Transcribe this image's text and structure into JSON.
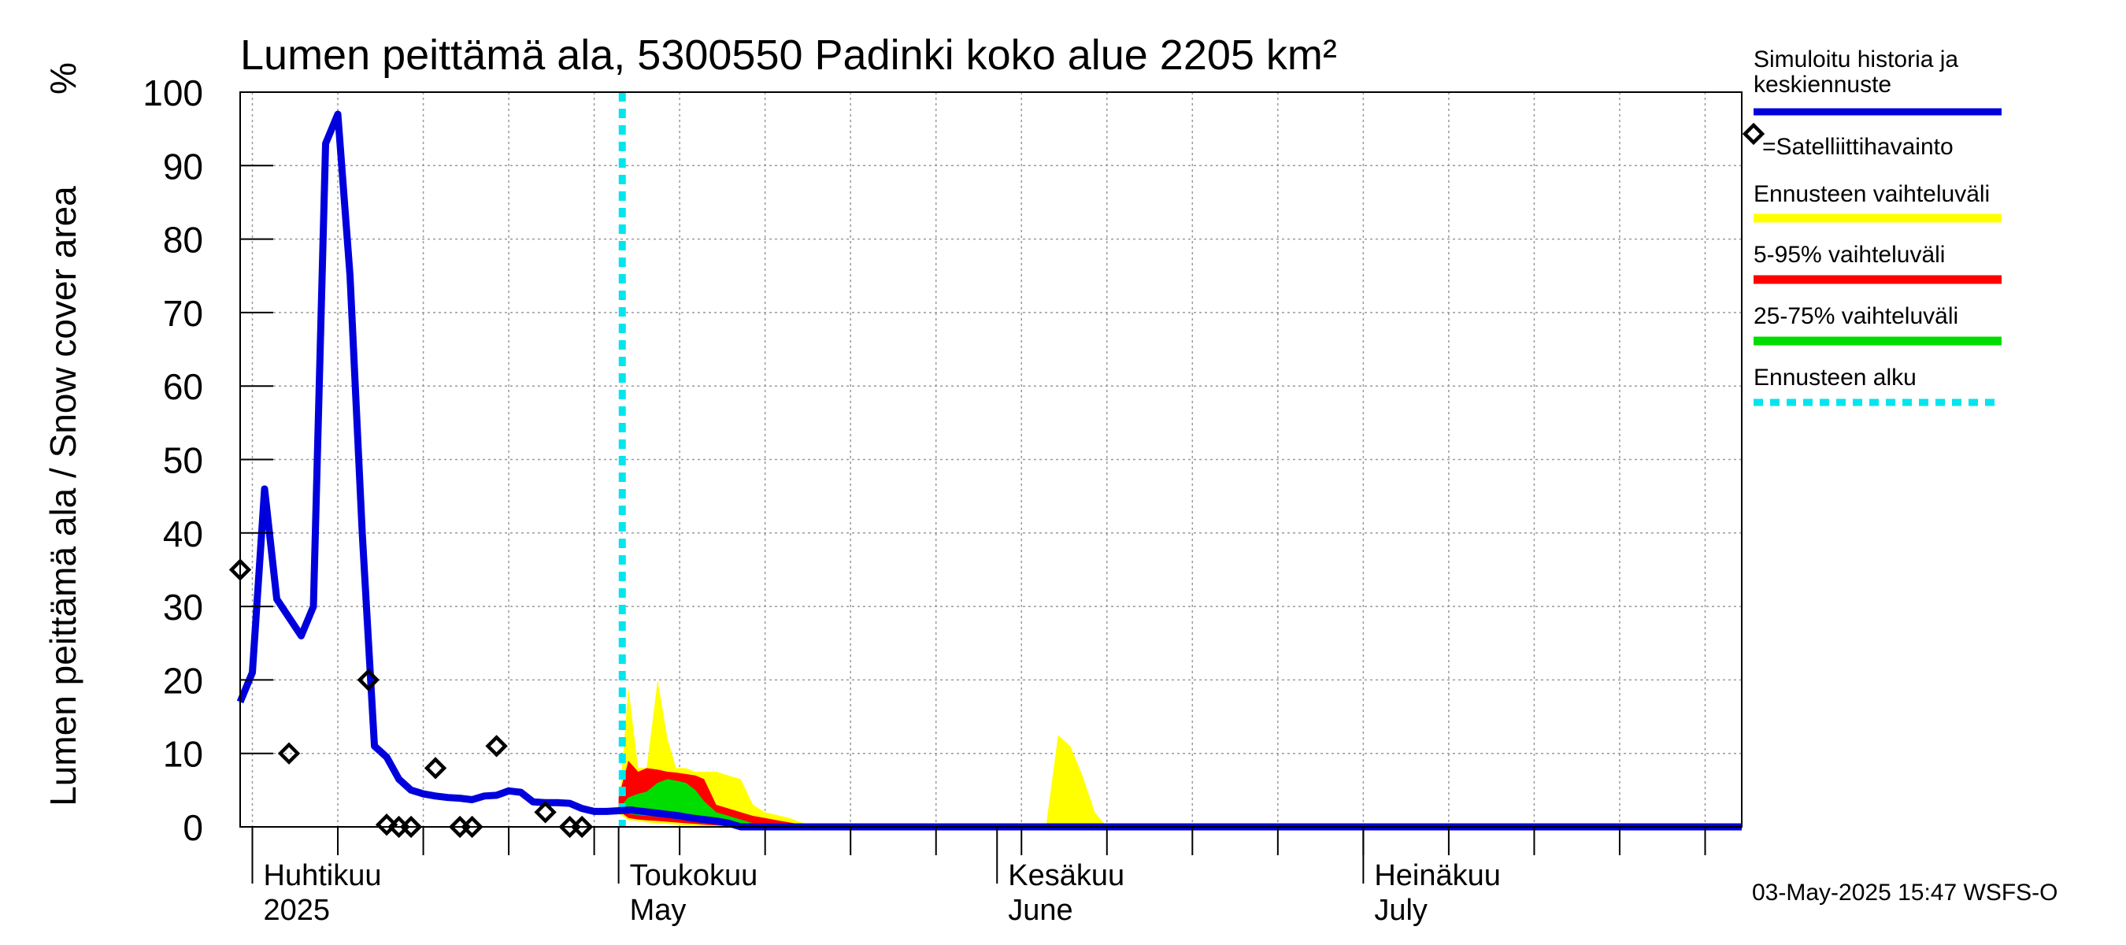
{
  "chart_data": {
    "type": "area",
    "title": "Lumen peittämä ala, 5300550 Padinki koko alue 2205 km²",
    "ylabel": "Lumen peittämä ala / Snow cover area",
    "yunit": "%",
    "ylim": [
      0,
      100
    ],
    "yticks": [
      0,
      10,
      20,
      30,
      40,
      50,
      60,
      70,
      80,
      90,
      100
    ],
    "x_unit": "day of year 2025",
    "xlim": [
      90.0,
      213.0
    ],
    "months": [
      {
        "label_fi": "Huhtikuu",
        "label_en": "2025",
        "start_day": 91
      },
      {
        "label_fi": "Toukokuu",
        "label_en": "May",
        "start_day": 121
      },
      {
        "label_fi": "Kesäkuu",
        "label_en": "June",
        "start_day": 152
      },
      {
        "label_fi": "Heinäkuu",
        "label_en": "July",
        "start_day": 182
      }
    ],
    "forecast_start_day": 121.3,
    "simulated_history": {
      "name": "Simuloitu historia ja keskiennuste",
      "color": "#0000dd",
      "x": [
        90.0,
        91.0,
        92.0,
        93.0,
        94.0,
        95.0,
        96.0,
        97.0,
        98.0,
        99.0,
        100.0,
        101.0,
        102.0,
        103.0,
        104.0,
        105.0,
        106.0,
        107.0,
        108.0,
        109.0,
        110.0,
        111.0,
        112.0,
        113.0,
        114.0,
        115.0,
        116.0,
        117.0,
        118.0,
        119.0,
        120.0,
        121.0,
        122.0,
        123.0,
        124.0,
        125.0,
        126.0,
        127.0,
        128.0,
        129.0,
        130.0,
        131.0,
        132.0,
        133.0,
        213.0
      ],
      "y": [
        17.0,
        21.0,
        46.0,
        31.0,
        28.5,
        26.0,
        30.0,
        93.0,
        97.0,
        75.0,
        40.0,
        11.0,
        9.5,
        6.5,
        5.0,
        4.5,
        4.2,
        4.0,
        3.9,
        3.7,
        4.2,
        4.3,
        4.9,
        4.7,
        3.4,
        3.3,
        3.3,
        3.2,
        2.5,
        2.1,
        2.1,
        2.2,
        2.3,
        2.1,
        1.9,
        1.7,
        1.5,
        1.2,
        1.0,
        0.8,
        0.5,
        0.0,
        0.0,
        0.0,
        0.0
      ]
    },
    "satellite_observations": {
      "name": "=Satelliittihavainto",
      "x": [
        90.0,
        94.0,
        100.5,
        102.0,
        103.0,
        104.0,
        106.0,
        108.0,
        109.0,
        111.0,
        115.0,
        117.0,
        118.0
      ],
      "y": [
        35.0,
        10.0,
        20.0,
        0.3,
        0.0,
        0.0,
        8.0,
        0.0,
        0.0,
        11.0,
        2.0,
        0.0,
        0.0
      ]
    },
    "forecast_range": {
      "name": "Ennusteen vaihteluväli",
      "color": "#ffff00",
      "x": [
        121.0,
        121.8,
        122.6,
        123.3,
        124.2,
        125.0,
        125.7,
        126.5,
        127.3,
        128.0,
        129.0,
        130.0,
        131.0,
        132.0,
        133.0,
        135.0,
        136.5,
        137.0,
        156.0,
        157.0,
        158.0,
        159.0,
        160.0,
        161.0
      ],
      "y": [
        2.0,
        19.0,
        8.0,
        8.0,
        20.0,
        12.0,
        8.0,
        8.0,
        7.5,
        7.5,
        7.5,
        7.0,
        6.5,
        3.0,
        2.0,
        1.2,
        0.3,
        0.0,
        0.0,
        12.5,
        11.0,
        7.0,
        2.0,
        0.0
      ],
      "y_lower": [
        1.8,
        0.9,
        0.8,
        0.6,
        0.5,
        0.4,
        0.3,
        0.2,
        0.1,
        0.0,
        0.0,
        0.0,
        0.0,
        0.0,
        0.0,
        0.0,
        0.0,
        0.0,
        0.0,
        0.0,
        0.0,
        0.0,
        0.0,
        0.0
      ]
    },
    "band_5_95": {
      "name": "5-95% vaihteluväli",
      "color": "#ff0000",
      "x": [
        121.0,
        121.8,
        122.6,
        123.3,
        124.2,
        125.0,
        125.7,
        126.5,
        127.3,
        128.0,
        129.0,
        130.0,
        131.0,
        132.0,
        133.0,
        134.0,
        135.0,
        136.0,
        137.0
      ],
      "y": [
        4.0,
        9.0,
        7.5,
        8.0,
        7.8,
        7.5,
        7.4,
        7.2,
        7.0,
        6.5,
        3.0,
        2.5,
        2.0,
        1.5,
        1.2,
        0.9,
        0.6,
        0.3,
        0.0
      ],
      "y_lower": [
        2.2,
        1.2,
        1.0,
        0.9,
        0.8,
        0.7,
        0.6,
        0.5,
        0.4,
        0.3,
        0.2,
        0.1,
        0.0,
        0.0,
        0.0,
        0.0,
        0.0,
        0.0,
        0.0
      ]
    },
    "band_25_75": {
      "name": "25-75% vaihteluväli",
      "color": "#00dd00",
      "x": [
        121.0,
        121.8,
        122.6,
        123.3,
        124.2,
        125.0,
        125.7,
        126.5,
        127.3,
        128.0,
        129.0,
        130.0,
        131.0,
        132.0,
        133.0
      ],
      "y": [
        2.5,
        4.0,
        4.5,
        4.8,
        6.0,
        6.5,
        6.3,
        6.0,
        5.0,
        3.5,
        2.0,
        1.5,
        1.0,
        0.5,
        0.0
      ],
      "y_lower": [
        2.1,
        1.8,
        1.6,
        1.5,
        1.4,
        1.3,
        1.2,
        1.1,
        1.0,
        0.8,
        0.6,
        0.4,
        0.2,
        0.0,
        0.0
      ]
    },
    "legend": [
      {
        "label": "Simuloitu historia ja keskiennuste",
        "line1": "Simuloitu historia ja",
        "line2": "keskiennuste",
        "color": "#0000dd"
      },
      {
        "label": "=Satelliittihavainto",
        "marker": "diamond"
      },
      {
        "label": "Ennusteen vaihteluväli",
        "color": "#ffff00"
      },
      {
        "label": "5-95% vaihteluväli",
        "color": "#ff0000"
      },
      {
        "label": "25-75% vaihteluväli",
        "color": "#00dd00"
      },
      {
        "label": "Ennusteen alku",
        "color": "#00e5ee",
        "style": "dashed"
      }
    ],
    "legend_position": "right",
    "grid": true,
    "timestamp": "03-May-2025 15:47 WSFS-O"
  }
}
